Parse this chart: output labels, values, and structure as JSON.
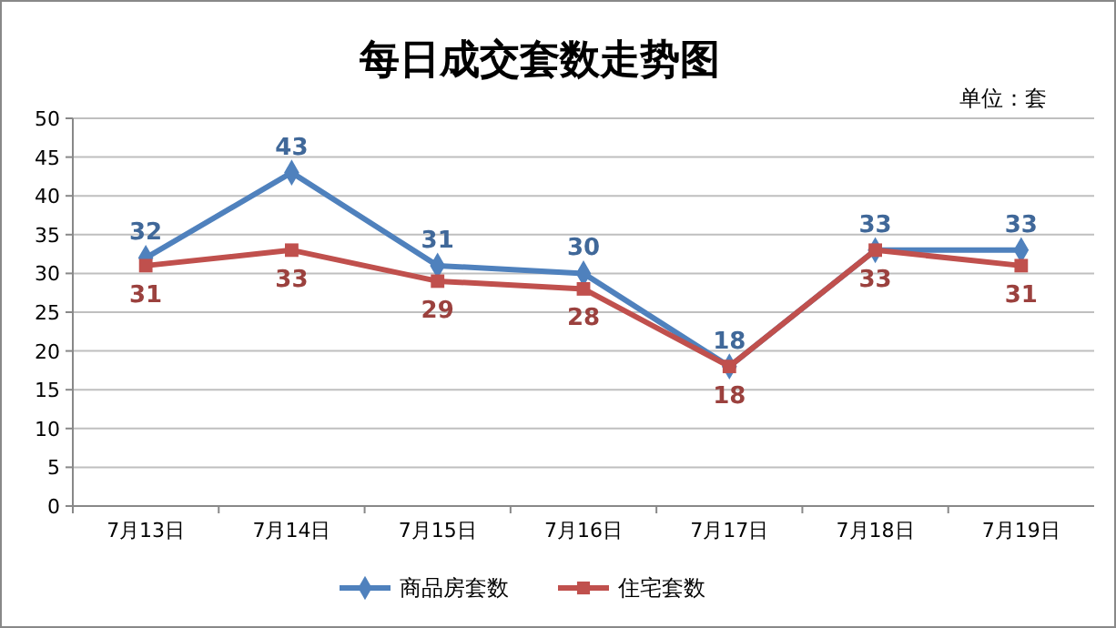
{
  "chart_data": {
    "type": "line",
    "title": "每日成交套数走势图",
    "annotations": [
      "单位：套"
    ],
    "categories": [
      "7月13日",
      "7月14日",
      "7月15日",
      "7月16日",
      "7月17日",
      "7月18日",
      "7月19日"
    ],
    "series": [
      {
        "name": "商品房套数",
        "color": "#4f81bd",
        "marker": "diamond",
        "values": [
          32,
          43,
          31,
          30,
          18,
          33,
          33
        ]
      },
      {
        "name": "住宅套数",
        "color": "#c0504d",
        "marker": "square",
        "values": [
          31,
          33,
          29,
          28,
          18,
          33,
          31
        ]
      }
    ],
    "ylim": [
      0,
      50
    ],
    "yticks": [
      0,
      5,
      10,
      15,
      20,
      25,
      30,
      35,
      40,
      45,
      50
    ],
    "grid": "y",
    "legend": "bottom",
    "data_labels": true
  }
}
